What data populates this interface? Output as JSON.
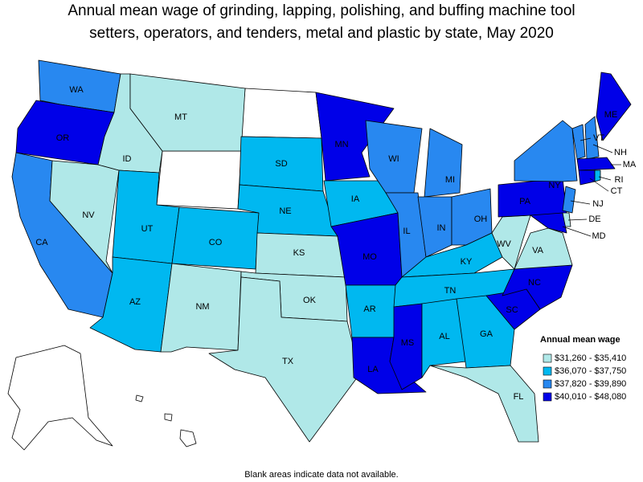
{
  "title": [
    "Annual mean wage of grinding, lapping, polishing, and buffing machine tool",
    "setters, operators, and tenders, metal and plastic by state, May 2020"
  ],
  "legend": {
    "title": "Annual mean wage",
    "bins": [
      {
        "label": "$31,260 - $35,410",
        "color": "#b0e8e8"
      },
      {
        "label": "$36,070 - $37,750",
        "color": "#00b8f0"
      },
      {
        "label": "$37,820 - $39,890",
        "color": "#2888f0"
      },
      {
        "label": "$40,010 - $48,080",
        "color": "#0000e8"
      }
    ]
  },
  "states": [
    {
      "abbr": "WA",
      "bin": 2
    },
    {
      "abbr": "OR",
      "bin": 3
    },
    {
      "abbr": "CA",
      "bin": 2
    },
    {
      "abbr": "NV",
      "bin": 0
    },
    {
      "abbr": "ID",
      "bin": 0
    },
    {
      "abbr": "MT",
      "bin": 0
    },
    {
      "abbr": "UT",
      "bin": 1
    },
    {
      "abbr": "CO",
      "bin": 1
    },
    {
      "abbr": "AZ",
      "bin": 1
    },
    {
      "abbr": "NM",
      "bin": 0
    },
    {
      "abbr": "SD",
      "bin": 1
    },
    {
      "abbr": "NE",
      "bin": 1
    },
    {
      "abbr": "KS",
      "bin": 0
    },
    {
      "abbr": "OK",
      "bin": 0
    },
    {
      "abbr": "TX",
      "bin": 0
    },
    {
      "abbr": "MN",
      "bin": 3
    },
    {
      "abbr": "IA",
      "bin": 1
    },
    {
      "abbr": "MO",
      "bin": 3
    },
    {
      "abbr": "AR",
      "bin": 1
    },
    {
      "abbr": "LA",
      "bin": 3
    },
    {
      "abbr": "WI",
      "bin": 2
    },
    {
      "abbr": "IL",
      "bin": 2
    },
    {
      "abbr": "MI",
      "bin": 2
    },
    {
      "abbr": "IN",
      "bin": 2
    },
    {
      "abbr": "OH",
      "bin": 2
    },
    {
      "abbr": "KY",
      "bin": 1
    },
    {
      "abbr": "TN",
      "bin": 1
    },
    {
      "abbr": "MS",
      "bin": 3
    },
    {
      "abbr": "AL",
      "bin": 1
    },
    {
      "abbr": "GA",
      "bin": 1
    },
    {
      "abbr": "FL",
      "bin": 0
    },
    {
      "abbr": "SC",
      "bin": 3
    },
    {
      "abbr": "NC",
      "bin": 3
    },
    {
      "abbr": "VA",
      "bin": 0
    },
    {
      "abbr": "WV",
      "bin": 0
    },
    {
      "abbr": "PA",
      "bin": 3
    },
    {
      "abbr": "NY",
      "bin": 2
    },
    {
      "abbr": "VT",
      "bin": 2
    },
    {
      "abbr": "NH",
      "bin": 2
    },
    {
      "abbr": "ME",
      "bin": 3
    },
    {
      "abbr": "MA",
      "bin": 3
    },
    {
      "abbr": "CT",
      "bin": 3
    },
    {
      "abbr": "RI",
      "bin": 1
    },
    {
      "abbr": "NJ",
      "bin": 2
    },
    {
      "abbr": "DE",
      "bin": 0
    },
    {
      "abbr": "MD",
      "bin": 3
    }
  ],
  "footnote": "Blank areas indicate data not available."
}
